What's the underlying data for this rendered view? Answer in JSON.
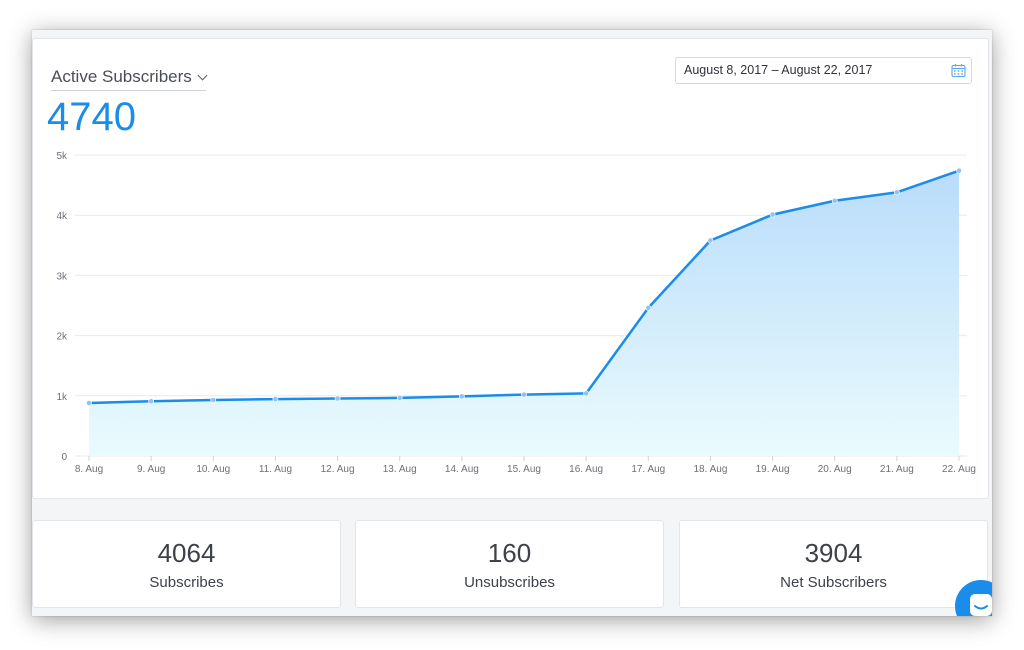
{
  "header": {
    "metric_label": "Active Subscribers",
    "big_number": "4740",
    "date_range": "August 8, 2017 – August 22, 2017"
  },
  "chart_data": {
    "type": "area",
    "x": [
      "8. Aug",
      "9. Aug",
      "10. Aug",
      "11. Aug",
      "12. Aug",
      "13. Aug",
      "14. Aug",
      "15. Aug",
      "16. Aug",
      "17. Aug",
      "18. Aug",
      "19. Aug",
      "20. Aug",
      "21. Aug",
      "22. Aug"
    ],
    "series": [
      {
        "values": [
          880,
          910,
          930,
          945,
          955,
          965,
          990,
          1020,
          1040,
          2460,
          3580,
          4010,
          4240,
          4380,
          4740
        ]
      }
    ],
    "y_ticks": [
      "0",
      "1k",
      "2k",
      "3k",
      "4k",
      "5k"
    ],
    "ylim": [
      0,
      5000
    ],
    "grid": true,
    "line_color": "#1a8cea",
    "fill_top_color": "#b9dcfb",
    "fill_bottom_color": "#eafbfd"
  },
  "stats": [
    {
      "value": "4064",
      "label": "Subscribes"
    },
    {
      "value": "160",
      "label": "Unsubscribes"
    },
    {
      "value": "3904",
      "label": "Net Subscribers"
    }
  ],
  "icons": {
    "date_picker": "calendar-icon",
    "chat": "chat-icon",
    "dropdown": "chevron-down-icon"
  }
}
